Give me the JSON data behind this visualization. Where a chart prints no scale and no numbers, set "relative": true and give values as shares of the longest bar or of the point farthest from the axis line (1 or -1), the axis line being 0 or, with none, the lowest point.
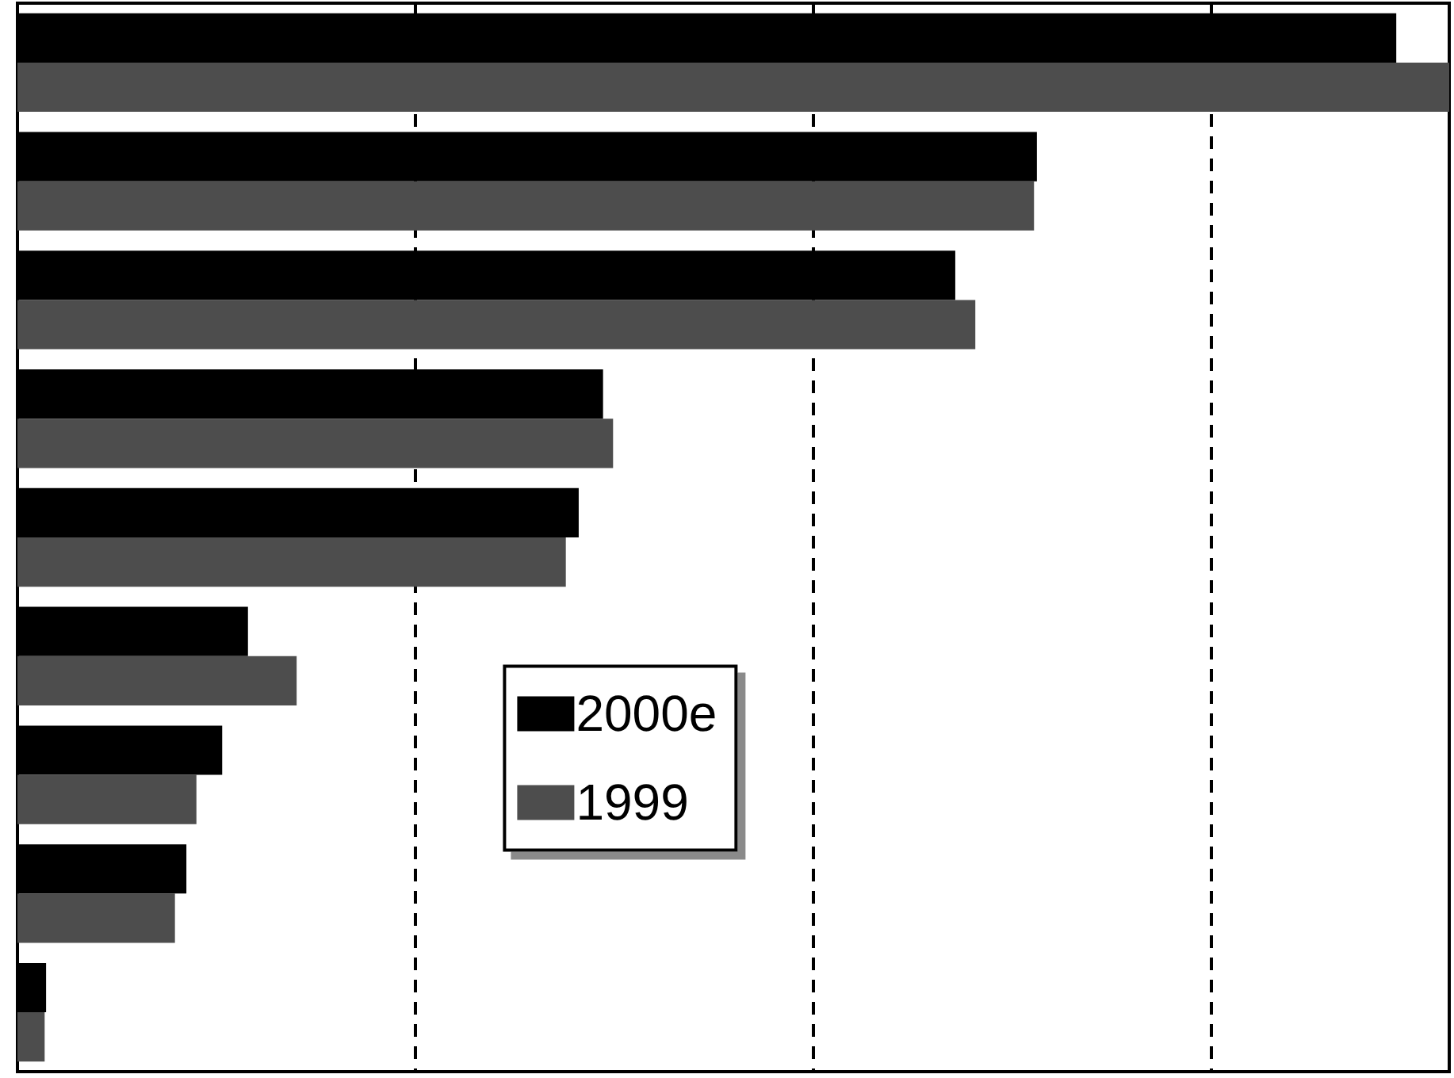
{
  "chart_data": {
    "type": "bar",
    "orientation": "horizontal",
    "relative": true,
    "categories": [
      null,
      null,
      null,
      null,
      null,
      null,
      null,
      null,
      null
    ],
    "series": [
      {
        "name": "2000e",
        "color": "#000000",
        "values": [
          0.963,
          0.712,
          0.655,
          0.409,
          0.392,
          0.161,
          0.143,
          0.118,
          0.02
        ]
      },
      {
        "name": "1999",
        "color": "#4d4d4d",
        "values": [
          1,
          0.71,
          0.669,
          0.416,
          0.383,
          0.195,
          0.125,
          0.11,
          0.019
        ]
      }
    ],
    "legend": "bottom",
    "grid": "x"
  }
}
